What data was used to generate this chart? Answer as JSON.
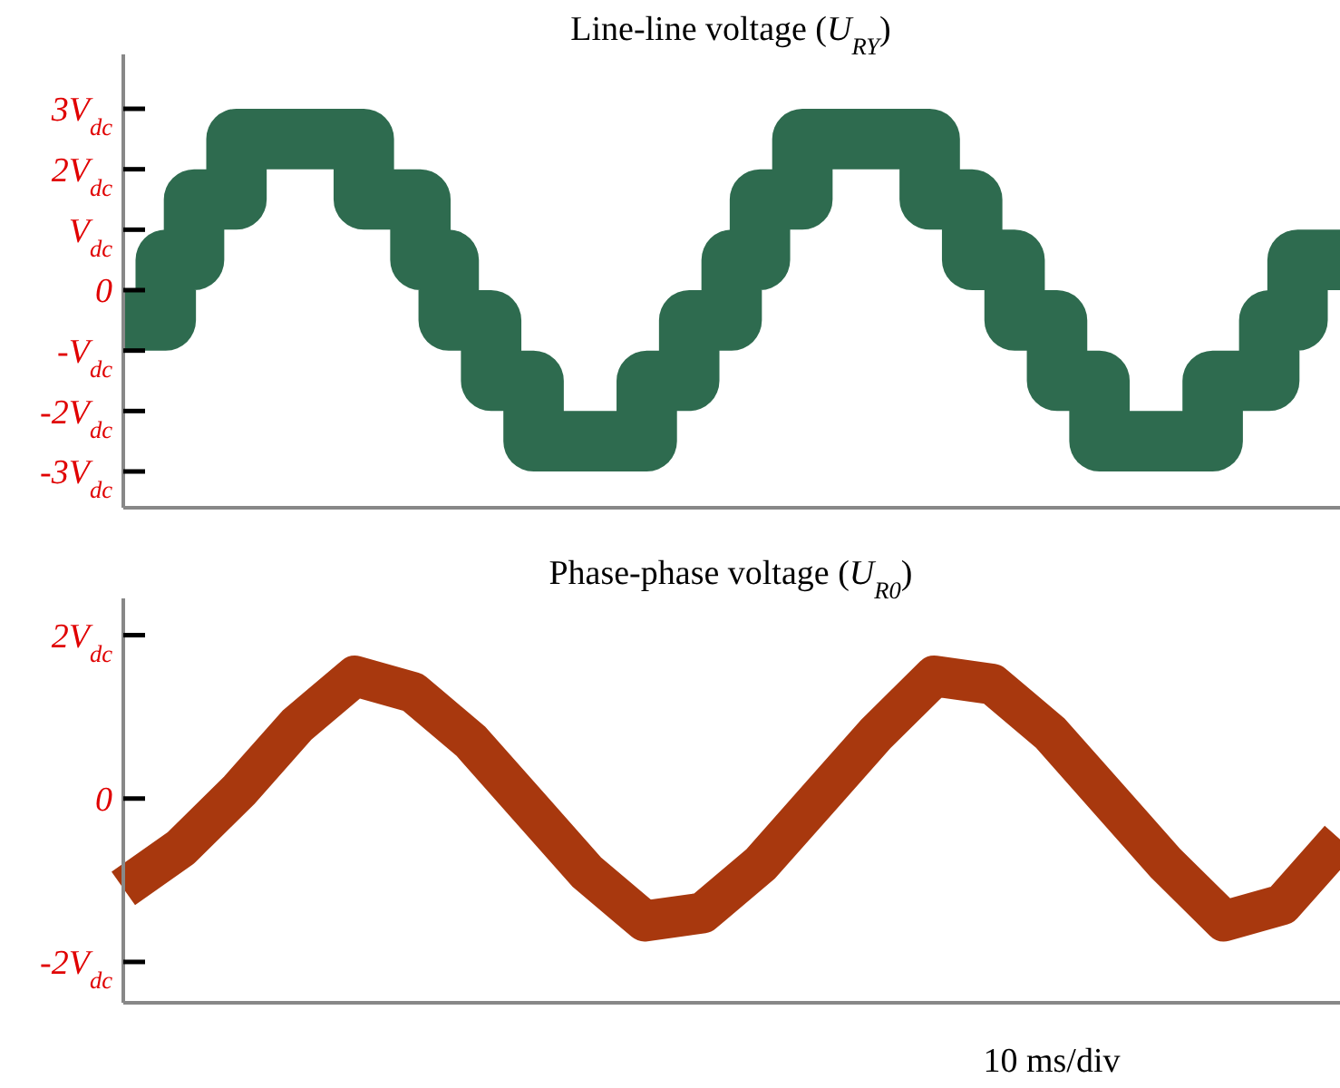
{
  "chart_data": [
    {
      "type": "step",
      "title": "Line-line voltage (U$_{RY}$)",
      "categories": [
        null,
        null,
        null,
        null,
        null,
        null,
        null,
        null,
        null,
        null,
        null,
        null,
        null,
        null,
        null,
        null,
        null,
        null,
        null,
        null,
        null,
        null,
        null,
        null,
        null,
        null,
        null,
        null,
        null,
        null,
        null,
        null,
        null,
        null,
        null,
        null,
        null,
        null,
        null,
        null,
        null,
        null,
        null,
        null,
        null,
        null,
        null,
        null,
        null,
        null,
        null,
        null,
        null,
        null,
        null,
        null,
        null,
        null,
        null,
        null,
        null,
        null,
        null,
        null,
        null,
        null,
        null,
        null,
        null,
        null,
        null,
        null,
        null,
        null,
        null,
        null,
        null,
        null,
        null,
        null,
        null,
        null,
        null,
        null,
        null,
        null,
        null
      ],
      "ylim": [
        -3.6,
        3.9
      ],
      "yticks": [
        {
          "value": 3,
          "label": "3V$_{dc}$"
        },
        {
          "value": 2,
          "label": "2V$_{dc}$"
        },
        {
          "value": 1,
          "label": "V$_{dc}$"
        },
        {
          "value": 0,
          "label": "0"
        },
        {
          "value": -1,
          "label": "-V$_{dc}$"
        },
        {
          "value": -2,
          "label": "-2V$_{dc}$"
        },
        {
          "value": -3,
          "label": "-3V$_{dc}$"
        }
      ],
      "tick_labels": "y",
      "series": [
        {
          "color": "#2e6b4f",
          "values": [
            -0.5,
            -0.5,
            -0.5,
            0.5,
            0.5,
            1.5,
            1.5,
            1.5,
            2.5,
            2.5,
            2.5,
            2.5,
            2.5,
            2.5,
            2.5,
            2.5,
            2.5,
            1.5,
            1.5,
            1.5,
            1.5,
            0.5,
            0.5,
            -0.5,
            -0.5,
            -0.5,
            -1.5,
            -1.5,
            -1.5,
            -2.5,
            -2.5,
            -2.5,
            -2.5,
            -2.5,
            -2.5,
            -2.5,
            -2.5,
            -1.5,
            -1.5,
            -1.5,
            -0.5,
            -0.5,
            -0.5,
            0.5,
            0.5,
            1.5,
            1.5,
            1.5,
            2.5,
            2.5,
            2.5,
            2.5,
            2.5,
            2.5,
            2.5,
            2.5,
            2.5,
            1.5,
            1.5,
            1.5,
            0.5,
            0.5,
            0.5,
            -0.5,
            -0.5,
            -0.5,
            -1.5,
            -1.5,
            -1.5,
            -2.5,
            -2.5,
            -2.5,
            -2.5,
            -2.5,
            -2.5,
            -2.5,
            -2.5,
            -1.5,
            -1.5,
            -1.5,
            -1.5,
            -0.5,
            -0.5,
            0.5,
            0.5,
            0.5,
            0.5
          ]
        }
      ]
    },
    {
      "type": "line",
      "title": "Phase-phase voltage (U$_{R0}$)",
      "categories": [
        null,
        null,
        null,
        null,
        null,
        null,
        null,
        null,
        null,
        null,
        null,
        null,
        null,
        null,
        null,
        null,
        null,
        null,
        null,
        null,
        null,
        null
      ],
      "ylim": [
        -2.5,
        2.45
      ],
      "yticks": [
        {
          "value": 2,
          "label": "2V$_{dc}$"
        },
        {
          "value": 0,
          "label": "0"
        },
        {
          "value": -2,
          "label": "-2V$_{dc}$"
        }
      ],
      "tick_labels": "y",
      "annotations": [
        "10 ms/div"
      ],
      "series": [
        {
          "color": "#a8380e",
          "values": [
            -1.1,
            -0.6,
            0.1,
            0.9,
            1.5,
            1.3,
            0.7,
            -0.1,
            -0.9,
            -1.5,
            -1.4,
            -0.8,
            0.0,
            0.8,
            1.5,
            1.4,
            0.8,
            0.0,
            -0.8,
            -1.5,
            -1.3,
            -0.5
          ]
        }
      ]
    }
  ]
}
